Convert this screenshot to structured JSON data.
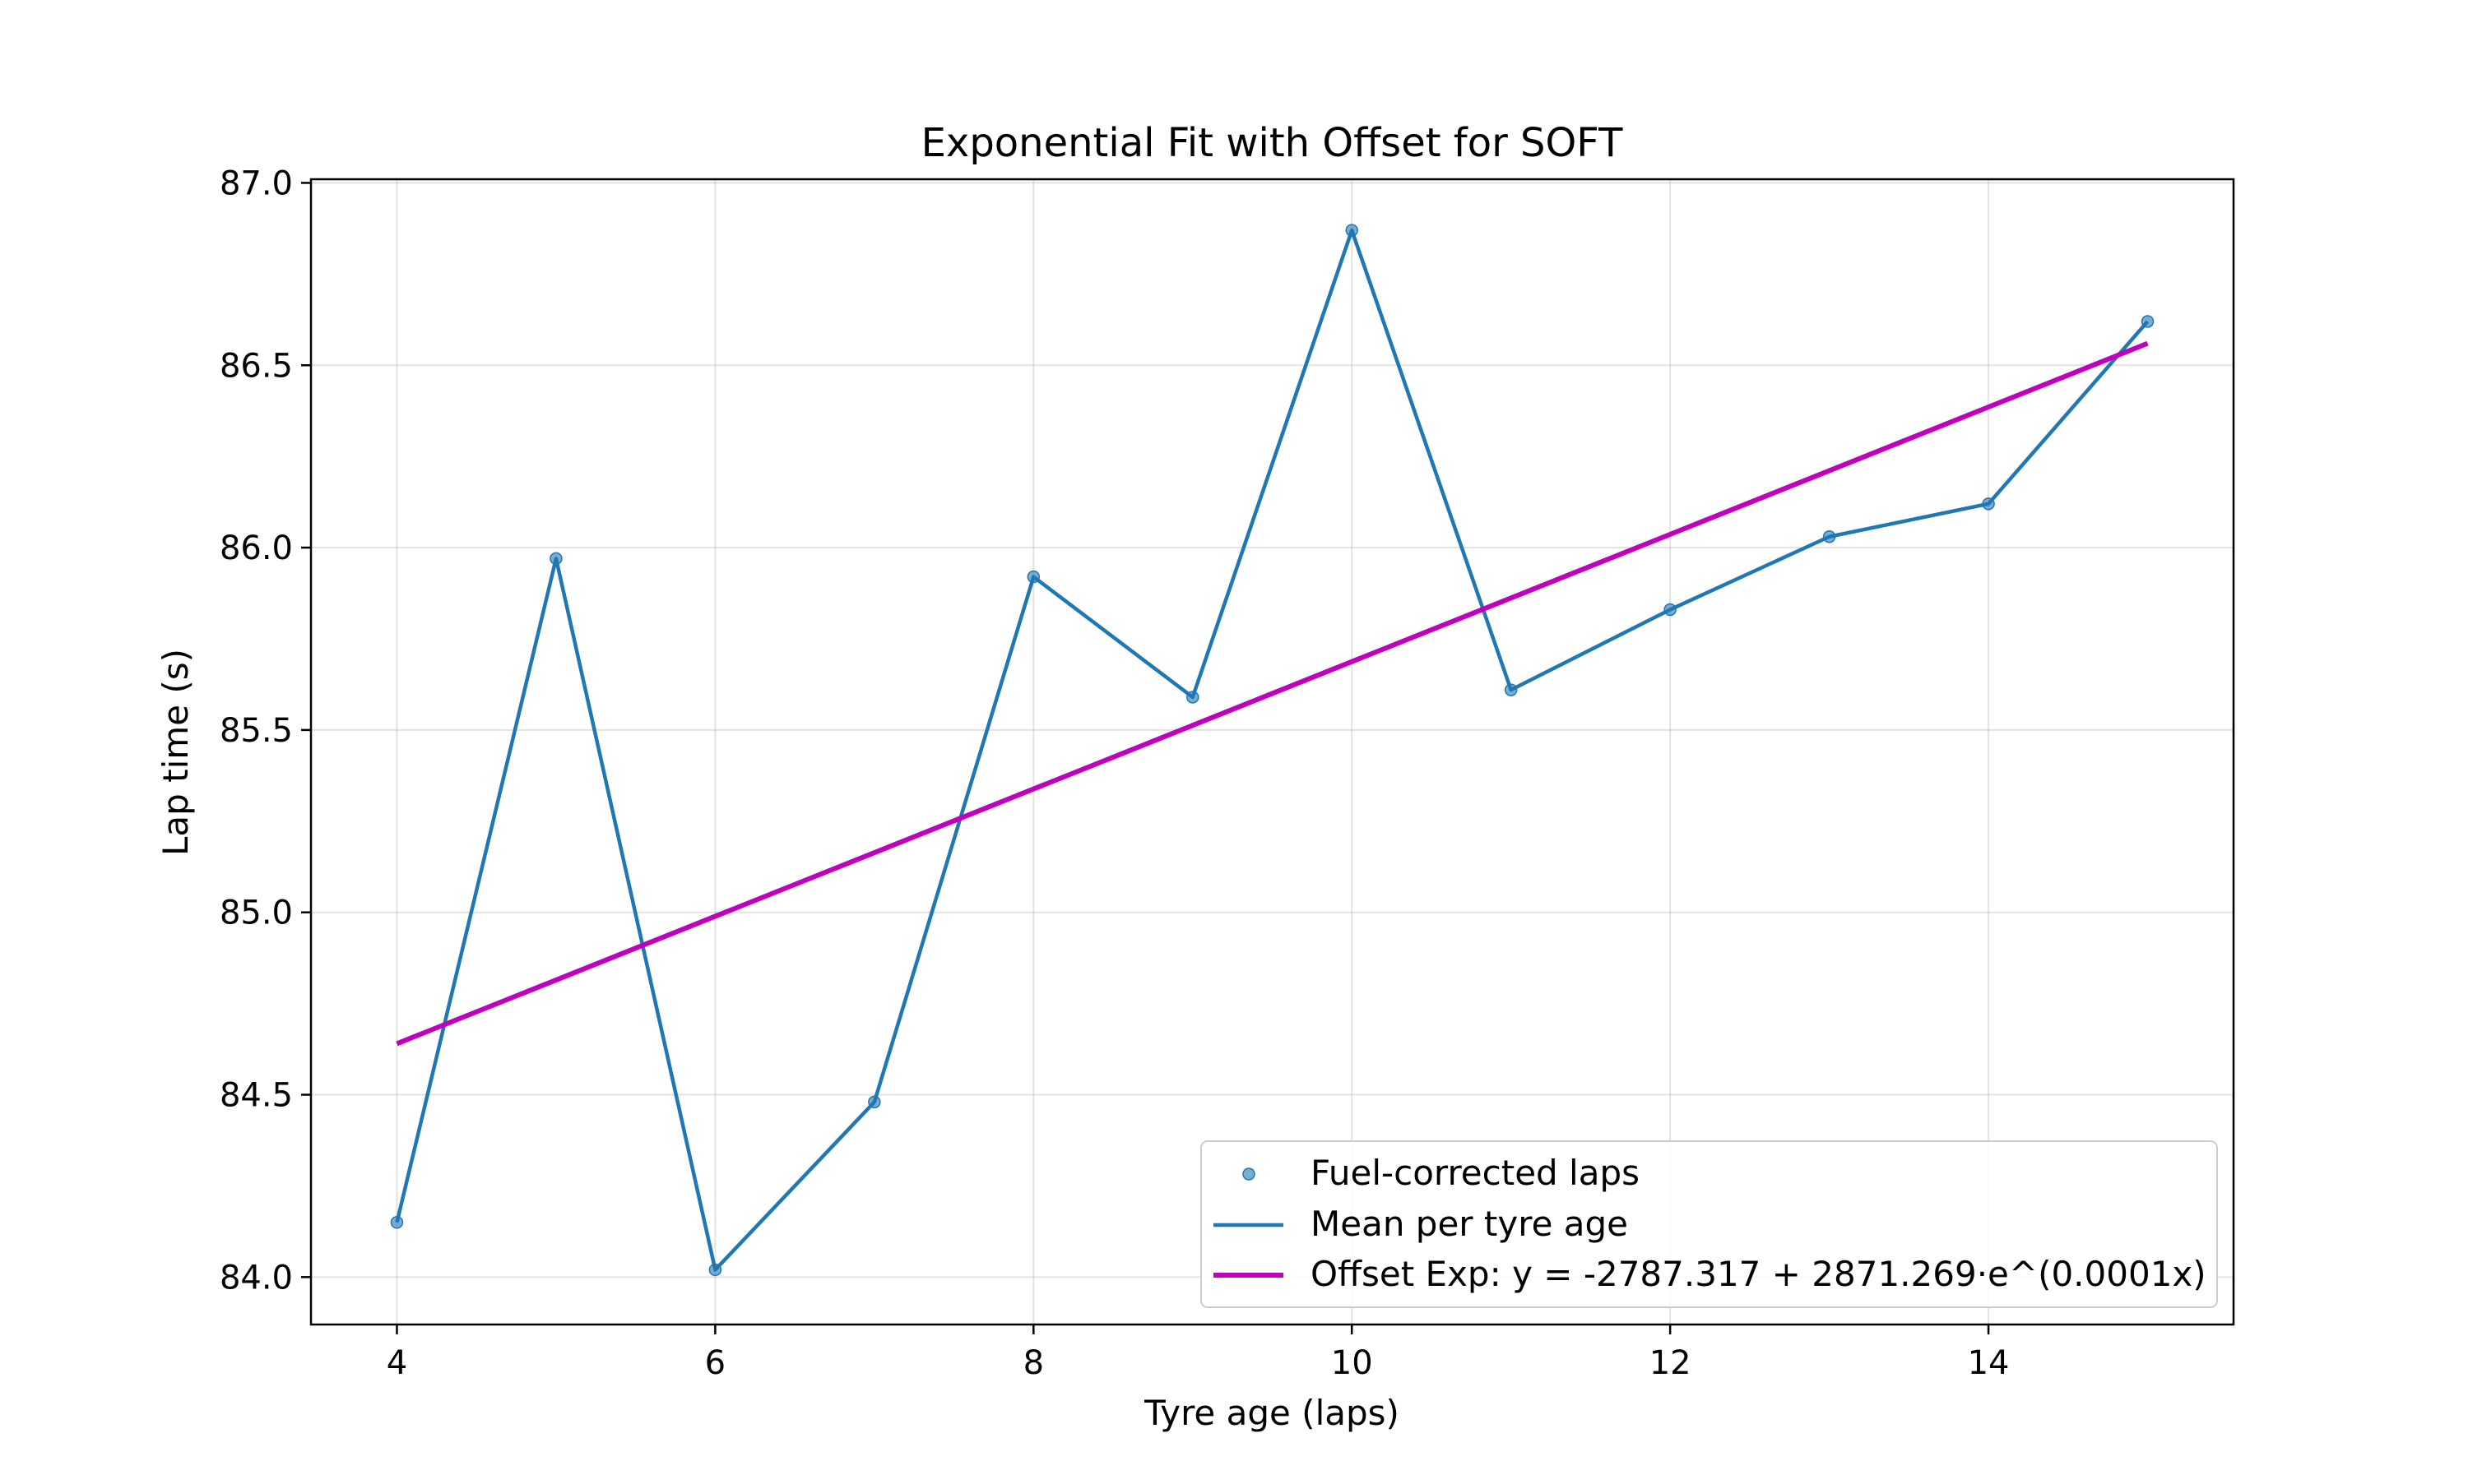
{
  "chart_data": {
    "type": "line",
    "title": "Exponential Fit with Offset for SOFT",
    "xlabel": "Tyre age (laps)",
    "ylabel": "Lap time (s)",
    "xlim": [
      3.46,
      15.54
    ],
    "ylim": [
      83.87,
      87.01
    ],
    "x_ticks": [
      "4",
      "6",
      "8",
      "10",
      "12",
      "14"
    ],
    "y_ticks": [
      "84.0",
      "84.5",
      "85.0",
      "85.5",
      "86.0",
      "86.5",
      "87.0"
    ],
    "grid": true,
    "legend_position": "lower-right",
    "series": [
      {
        "name": "Fuel-corrected laps",
        "kind": "scatter",
        "color": "#1f77b4",
        "x": [
          4,
          5,
          6,
          7,
          8,
          9,
          10,
          11,
          12,
          13,
          14,
          15
        ],
        "y": [
          84.15,
          85.97,
          84.02,
          84.48,
          85.92,
          85.59,
          86.87,
          85.61,
          85.83,
          86.03,
          86.12,
          86.62
        ]
      },
      {
        "name": "Mean per tyre age",
        "kind": "line",
        "color": "#1f77b4",
        "x": [
          4,
          5,
          6,
          7,
          8,
          9,
          10,
          11,
          12,
          13,
          14,
          15
        ],
        "y": [
          84.15,
          85.97,
          84.02,
          84.48,
          85.92,
          85.59,
          86.87,
          85.61,
          85.83,
          86.03,
          86.12,
          86.62
        ]
      },
      {
        "name": "Offset Exp: y = -2787.317 + 2871.269·e^(0.0001x)",
        "kind": "fit",
        "color": "#bf00bf",
        "x": [
          4,
          15
        ],
        "y": [
          84.64,
          86.56
        ]
      }
    ]
  }
}
